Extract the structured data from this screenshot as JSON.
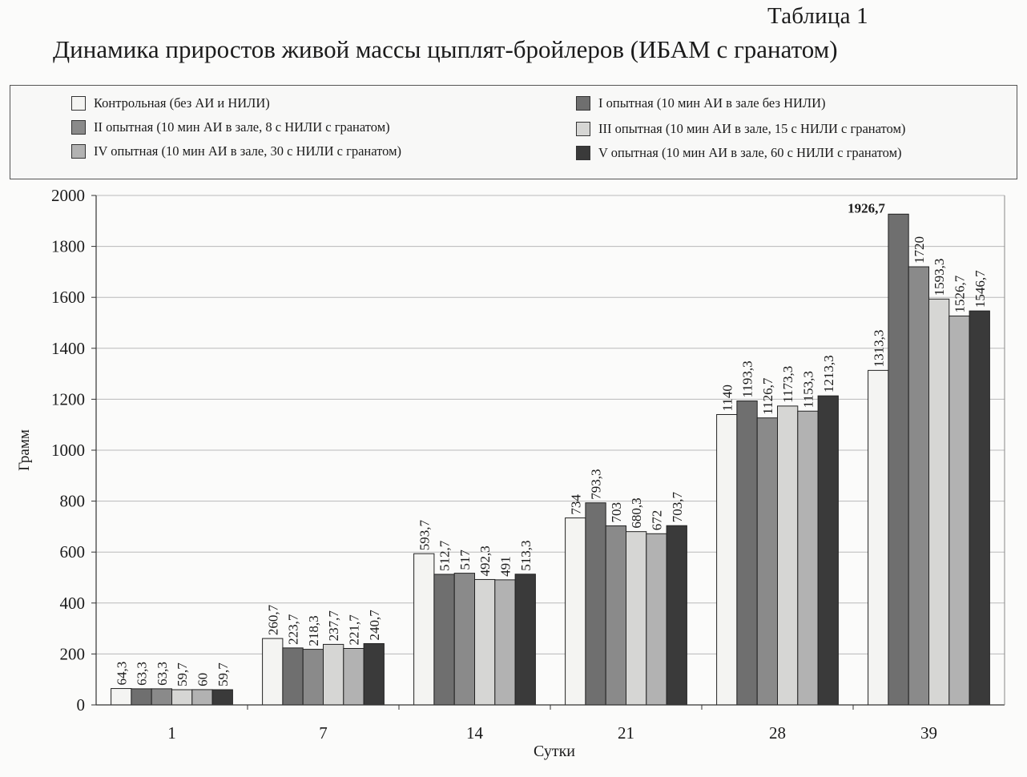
{
  "header": {
    "table_label": "Таблица 1",
    "title": "Динамика приростов живой массы цыплят-бройлеров (ИБАМ с гранатом)"
  },
  "legend": {
    "items": [
      {
        "label": "Контрольная (без АИ и НИЛИ)",
        "series": 0
      },
      {
        "label": "I опытная (10 мин АИ в зале без НИЛИ)",
        "series": 1
      },
      {
        "label": "II опытная (10 мин АИ в зале, 8 с НИЛИ с гранатом)",
        "series": 2
      },
      {
        "label": "III опытная (10 мин АИ в зале, 15 с НИЛИ с гранатом)",
        "series": 3
      },
      {
        "label": "IV опытная (10 мин АИ в зале, 30 с НИЛИ с гранатом)",
        "series": 4
      },
      {
        "label": "V опытная (10 мин АИ в зале, 60 с НИЛИ с гранатом)",
        "series": 5
      }
    ]
  },
  "chart_data": {
    "type": "bar",
    "title": "Динамика приростов живой массы цыплят-бройлеров (ИБАМ с гранатом)",
    "xlabel": "Сутки",
    "ylabel": "Грамм",
    "ylim": [
      0,
      2000
    ],
    "yticks": [
      0,
      200,
      400,
      600,
      800,
      1000,
      1200,
      1400,
      1600,
      1800,
      2000
    ],
    "grid": true,
    "legend_position": "top",
    "categories": [
      "1",
      "7",
      "14",
      "21",
      "28",
      "39"
    ],
    "series": [
      {
        "name": "Контрольная (без АИ и НИЛИ)",
        "color": "#f4f4f2",
        "values": [
          64.3,
          260.7,
          593.7,
          734,
          1140,
          1313.3
        ],
        "labels": [
          "64,3",
          "260,7",
          "593,7",
          "734",
          "1140",
          "1313,3"
        ]
      },
      {
        "name": "I опытная (10 мин АИ в зале без НИЛИ)",
        "color": "#6f6f6f",
        "values": [
          63.3,
          223.7,
          512.7,
          793.3,
          1193.3,
          1926.7
        ],
        "labels": [
          "63,3",
          "223,7",
          "512,7",
          "793,3",
          "1193,3",
          "1926,7"
        ]
      },
      {
        "name": "II опытная (10 мин АИ в зале, 8 с НИЛИ с гранатом)",
        "color": "#8a8a8a",
        "values": [
          63.3,
          218.3,
          517,
          703,
          1126.7,
          1720
        ],
        "labels": [
          "63,3",
          "218,3",
          "517",
          "703",
          "1126,7",
          "1720"
        ]
      },
      {
        "name": "III опытная (10 мин АИ в зале, 15 с НИЛИ с гранатом)",
        "color": "#d6d6d4",
        "values": [
          59.7,
          237.7,
          492.3,
          680.3,
          1173.3,
          1593.3
        ],
        "labels": [
          "59,7",
          "237,7",
          "492,3",
          "680,3",
          "1173,3",
          "1593,3"
        ]
      },
      {
        "name": "IV опытная (10 мин АИ в зале, 30 с НИЛИ с гранатом)",
        "color": "#b2b2b2",
        "values": [
          60,
          221.7,
          491,
          672,
          1153.3,
          1526.7
        ],
        "labels": [
          "60",
          "221,7",
          "491",
          "672",
          "1153,3",
          "1526,7"
        ]
      },
      {
        "name": "V опытная (10 мин АИ в зале, 60 с НИЛИ с гранатом)",
        "color": "#3a3a3a",
        "values": [
          59.7,
          240.7,
          513.3,
          703.7,
          1213.3,
          1546.7
        ],
        "labels": [
          "59,7",
          "240,7",
          "513,3",
          "703,7",
          "1213,3",
          "1546,7"
        ]
      }
    ]
  }
}
